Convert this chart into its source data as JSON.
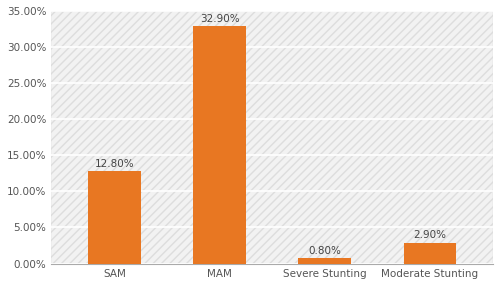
{
  "categories": [
    "SAM",
    "MAM",
    "Severe Stunting",
    "Moderate Stunting"
  ],
  "values": [
    12.8,
    32.9,
    0.8,
    2.9
  ],
  "bar_color": "#E87722",
  "bar_labels": [
    "12.80%",
    "32.90%",
    "0.80%",
    "2.90%"
  ],
  "ylim": [
    0,
    35
  ],
  "yticks": [
    0,
    5,
    10,
    15,
    20,
    25,
    30,
    35
  ],
  "ytick_labels": [
    "0.00%",
    "5.00%",
    "10.00%",
    "15.00%",
    "20.00%",
    "25.00%",
    "30.00%",
    "35.00%"
  ],
  "background_color": "#ffffff",
  "plot_bg_color": "#f2f2f2",
  "hatch_color": "#ffffff",
  "grid_color": "#ffffff",
  "label_fontsize": 7.5,
  "tick_fontsize": 7.5,
  "bar_width": 0.5
}
